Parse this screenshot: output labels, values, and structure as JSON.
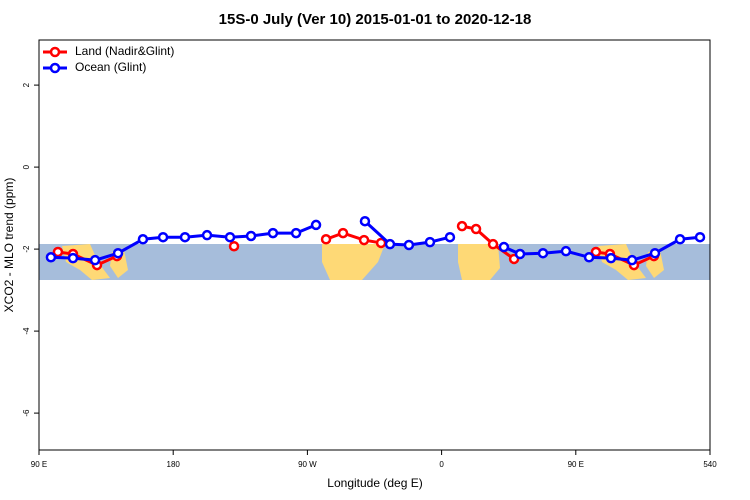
{
  "chart_data": {
    "type": "line",
    "title": "15S-0 July (Ver 10)   2015-01-01 to 2020-12-18",
    "x_label": "Longitude (deg E)",
    "y_label": "XCO2 - MLO trend (ppm)",
    "xlim": [
      90,
      540
    ],
    "ylim": [
      -6.9,
      3.1
    ],
    "xticks": [
      {
        "value": 90,
        "label": "90 E"
      },
      180,
      {
        "value": 270,
        "label": "90 W"
      },
      {
        "value": 360,
        "label": "0"
      },
      {
        "value": 450,
        "label": "90 E"
      },
      540
    ],
    "yticks": [
      2,
      0,
      -2,
      -4,
      -6
    ],
    "legend": "top-left",
    "series": [
      {
        "name": "Land (Nadir&Glint)",
        "color": "#ff0000",
        "x": [
          102.7,
          112.8,
          128.9,
          142.3,
          null,
          220.8,
          null,
          282.5,
          293.9,
          308.0,
          319.4,
          null,
          373.7,
          383.1,
          394.5,
          408.6,
          null,
          463.5,
          472.9,
          489.0,
          502.4
        ],
        "values": [
          -2.07,
          -2.12,
          -2.39,
          -2.17,
          null,
          -1.93,
          null,
          -1.76,
          -1.61,
          -1.78,
          -1.85,
          null,
          -1.44,
          -1.51,
          -1.88,
          -2.24,
          null,
          -2.07,
          -2.12,
          -2.39,
          -2.17
        ]
      },
      {
        "name": "Ocean (Glint)",
        "color": "#0000ff",
        "x": [
          98.0,
          112.8,
          127.6,
          143.0,
          159.7,
          173.2,
          187.9,
          202.7,
          218.1,
          232.2,
          246.9,
          262.4,
          275.8,
          null,
          308.6,
          325.4,
          338.1,
          352.2,
          365.6,
          null,
          401.8,
          412.6,
          428.0,
          443.4,
          458.9,
          473.6,
          487.7,
          503.1,
          519.9,
          533.3
        ],
        "values": [
          -2.2,
          -2.22,
          -2.27,
          -2.1,
          -1.76,
          -1.71,
          -1.71,
          -1.66,
          -1.71,
          -1.68,
          -1.61,
          -1.61,
          -1.41,
          null,
          -1.32,
          -1.88,
          -1.9,
          -1.83,
          -1.71,
          null,
          -1.95,
          -2.12,
          -2.1,
          -2.05,
          -2.2,
          -2.22,
          -2.27,
          -2.1,
          -1.76,
          -1.71
        ]
      }
    ]
  }
}
